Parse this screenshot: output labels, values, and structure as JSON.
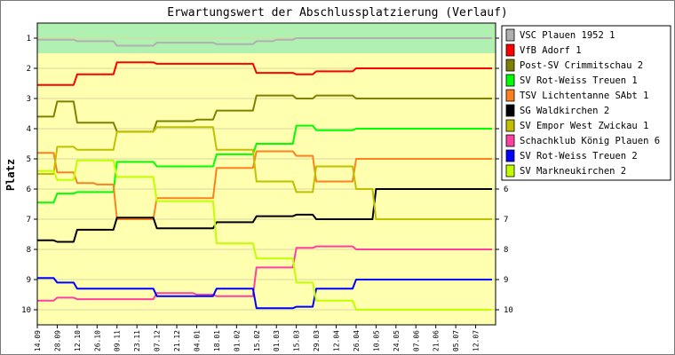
{
  "chart_data": {
    "type": "line",
    "title": "Erwartungswert der Abschlussplatzierung (Verlauf)",
    "ylabel": "Platz",
    "xlabel": "",
    "ylim": [
      1,
      10
    ],
    "y_ticks": [
      1,
      2,
      3,
      4,
      5,
      6,
      7,
      8,
      9,
      10
    ],
    "y_inverted": true,
    "highlight_band": {
      "from": 0.5,
      "to": 1.5,
      "color": "#b0f0b0"
    },
    "background_color": "#ffffb0",
    "grid": "horizontal",
    "legend_position": "right",
    "categories": [
      "14.09",
      "28.09",
      "12.10",
      "26.10",
      "09.11",
      "23.11",
      "07.12",
      "21.12",
      "04.01",
      "18.01",
      "01.02",
      "15.02",
      "01.03",
      "15.03",
      "29.03",
      "12.04",
      "26.04",
      "10.05",
      "24.05",
      "07.06",
      "21.06",
      "05.07",
      "12.07"
    ],
    "series": [
      {
        "name": "VSC Plauen 1952 1",
        "color": "#b0b0b0",
        "values": [
          1.05,
          1.05,
          1.1,
          1.1,
          1.25,
          1.25,
          1.15,
          1.15,
          1.15,
          1.2,
          1.2,
          1.1,
          1.05,
          1.0,
          1.0,
          1.0,
          1.0,
          1.0,
          1.0,
          1.0,
          1.0,
          1.0,
          1.0
        ]
      },
      {
        "name": "VfB Adorf 1",
        "color": "#ff0000",
        "values": [
          2.55,
          2.55,
          2.2,
          2.2,
          1.8,
          1.8,
          1.85,
          1.85,
          1.85,
          1.85,
          1.85,
          2.15,
          2.15,
          2.2,
          2.1,
          2.1,
          2.0,
          2.0,
          2.0,
          2.0,
          2.0,
          2.0,
          2.0
        ]
      },
      {
        "name": "Post-SV Crimmitschau 2",
        "color": "#808000",
        "values": [
          3.6,
          3.1,
          3.8,
          3.8,
          4.1,
          4.1,
          3.75,
          3.75,
          3.7,
          3.4,
          3.4,
          2.9,
          2.9,
          3.0,
          2.9,
          2.9,
          3.0,
          3.0,
          3.0,
          3.0,
          3.0,
          3.0,
          3.0
        ]
      },
      {
        "name": "SV Rot-Weiss Treuen 1",
        "color": "#00ff00",
        "values": [
          6.45,
          6.15,
          6.1,
          6.1,
          5.1,
          5.1,
          5.25,
          5.25,
          5.25,
          4.85,
          4.85,
          4.5,
          4.5,
          3.9,
          4.05,
          4.05,
          4.0,
          4.0,
          4.0,
          4.0,
          4.0,
          4.0,
          4.0
        ]
      },
      {
        "name": "TSV Lichtentanne SAbt 1",
        "color": "#ff8020",
        "values": [
          4.8,
          5.45,
          5.8,
          5.85,
          7.0,
          7.0,
          6.3,
          6.3,
          6.3,
          5.3,
          5.3,
          4.75,
          4.75,
          4.9,
          5.75,
          5.75,
          5.0,
          5.0,
          5.0,
          5.0,
          5.0,
          5.0,
          5.0
        ]
      },
      {
        "name": "SG Waldkirchen 2",
        "color": "#000000",
        "values": [
          7.7,
          7.75,
          7.35,
          7.35,
          6.95,
          6.95,
          7.3,
          7.3,
          7.3,
          7.1,
          7.1,
          6.9,
          6.9,
          6.85,
          7.0,
          7.0,
          7.0,
          6.0,
          6.0,
          6.0,
          6.0,
          6.0,
          6.0
        ]
      },
      {
        "name": "SV Empor West Zwickau 1",
        "color": "#c0c000",
        "values": [
          5.5,
          4.6,
          4.7,
          4.7,
          4.1,
          4.1,
          3.95,
          3.95,
          3.95,
          4.7,
          4.7,
          5.75,
          5.75,
          6.1,
          5.25,
          5.25,
          6.0,
          7.0,
          7.0,
          7.0,
          7.0,
          7.0,
          7.0
        ]
      },
      {
        "name": "Schachklub König Plauen 6",
        "color": "#ff40a0",
        "values": [
          9.7,
          9.6,
          9.65,
          9.65,
          9.65,
          9.65,
          9.45,
          9.45,
          9.5,
          9.55,
          9.55,
          8.6,
          8.6,
          7.95,
          7.9,
          7.9,
          8.0,
          8.0,
          8.0,
          8.0,
          8.0,
          8.0,
          8.0
        ]
      },
      {
        "name": "SV Rot-Weiss Treuen 2",
        "color": "#0000ff",
        "values": [
          8.95,
          9.1,
          9.3,
          9.3,
          9.3,
          9.3,
          9.55,
          9.55,
          9.55,
          9.3,
          9.3,
          9.95,
          9.95,
          9.9,
          9.3,
          9.3,
          9.0,
          9.0,
          9.0,
          9.0,
          9.0,
          9.0,
          9.0
        ]
      },
      {
        "name": "SV Markneukirchen 2",
        "color": "#c0ff00",
        "values": [
          5.4,
          5.7,
          5.05,
          5.05,
          5.6,
          5.6,
          6.4,
          6.4,
          6.4,
          7.8,
          7.8,
          8.3,
          8.3,
          9.1,
          9.7,
          9.7,
          10.0,
          10.0,
          10.0,
          10.0,
          10.0,
          10.0,
          10.0
        ]
      }
    ]
  }
}
